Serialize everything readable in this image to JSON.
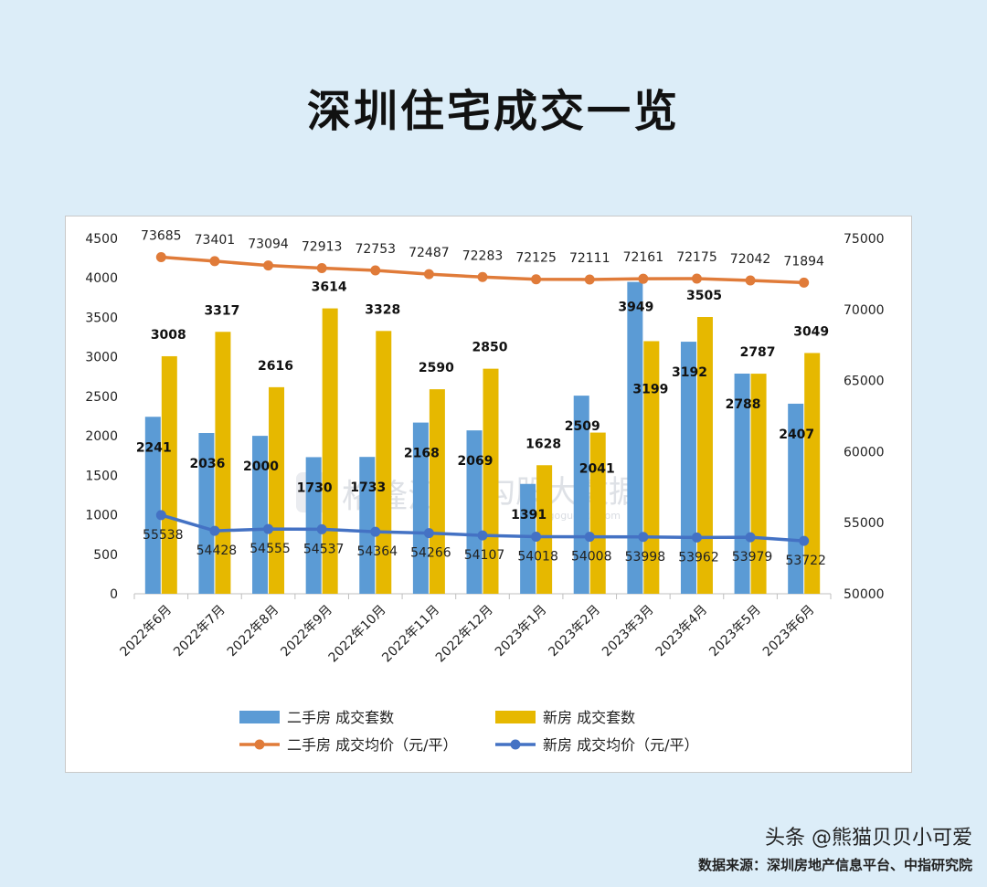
{
  "page": {
    "title": "深圳住宅成交一览",
    "source": "数据来源：深圳房地产信息平台、中指研究院",
    "brand": "头条 @熊猫贝贝小可爱",
    "watermark_1": "格隆汇",
    "watermark_2": "勾股大数据",
    "watermark_url": "www.gogudata.com"
  },
  "chart_data": {
    "type": "bar",
    "title": "深圳住宅成交一览",
    "categories": [
      "2022年6月",
      "2022年7月",
      "2022年8月",
      "2022年9月",
      "2022年10月",
      "2022年11月",
      "2022年12月",
      "2023年1月",
      "2023年2月",
      "2023年3月",
      "2023年4月",
      "2023年5月",
      "2023年6月"
    ],
    "ylim_left": [
      0,
      4500
    ],
    "yticks_left": [
      0,
      500,
      1000,
      1500,
      2000,
      2500,
      3000,
      3500,
      4000,
      4500
    ],
    "ylim_right": [
      50000,
      75000
    ],
    "yticks_right": [
      50000,
      55000,
      60000,
      65000,
      70000,
      75000
    ],
    "legend_position": "bottom",
    "series": [
      {
        "name": "二手房 成交套数",
        "type": "bar",
        "axis": "left",
        "color": "#5b9bd5",
        "values": [
          2241,
          2036,
          2000,
          1730,
          1733,
          2168,
          2069,
          1391,
          2509,
          3949,
          3192,
          2788,
          2407
        ]
      },
      {
        "name": "新房 成交套数",
        "type": "bar",
        "axis": "left",
        "color": "#e6b800",
        "values": [
          3008,
          3317,
          2616,
          3614,
          3328,
          2590,
          2850,
          1628,
          2041,
          3199,
          3505,
          2787,
          3049
        ]
      },
      {
        "name": "二手房 成交均价（元/平）",
        "type": "line",
        "axis": "right",
        "color": "#e07b39",
        "values": [
          73685,
          73401,
          73094,
          72913,
          72753,
          72487,
          72283,
          72125,
          72111,
          72161,
          72175,
          72042,
          71894
        ]
      },
      {
        "name": "新房 成交均价（元/平）",
        "type": "line",
        "axis": "right",
        "color": "#4472c4",
        "values": [
          55538,
          54428,
          54555,
          54537,
          54364,
          54266,
          54107,
          54018,
          54008,
          53998,
          53962,
          53979,
          53722
        ]
      }
    ]
  }
}
